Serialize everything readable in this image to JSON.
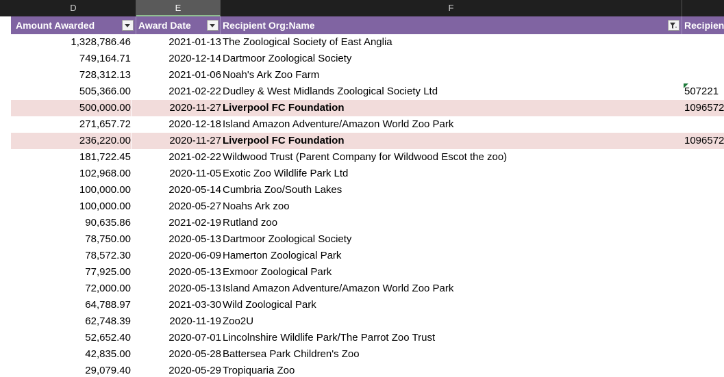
{
  "column_letters": [
    "D",
    "E",
    "F"
  ],
  "selected_column": "E",
  "headers": {
    "amount": "Amount Awarded",
    "date": "Award Date",
    "name": "Recipient Org:Name",
    "extra": "Recipient"
  },
  "rows": [
    {
      "amount": "1,328,786.46",
      "date": "2021-01-13",
      "name": "The Zoological Society of East Anglia",
      "extra": ""
    },
    {
      "amount": "749,164.71",
      "date": "2020-12-14",
      "name": "Dartmoor Zoological Society",
      "extra": ""
    },
    {
      "amount": "728,312.13",
      "date": "2021-01-06",
      "name": "Noah's Ark Zoo Farm",
      "extra": ""
    },
    {
      "amount": "505,366.00",
      "date": "2021-02-22",
      "name": "Dudley & West Midlands Zoological Society Ltd",
      "extra": "507221"
    },
    {
      "amount": "500,000.00",
      "date": "2020-11-27",
      "name": "Liverpool FC  Foundation",
      "extra": "1096572",
      "highlight": true
    },
    {
      "amount": "271,657.72",
      "date": "2020-12-18",
      "name": "Island Amazon Adventure/Amazon World Zoo Park",
      "extra": ""
    },
    {
      "amount": "236,220.00",
      "date": "2020-11-27",
      "name": "Liverpool FC  Foundation",
      "extra": "1096572",
      "highlight": true
    },
    {
      "amount": "181,722.45",
      "date": "2021-02-22",
      "name": "Wildwood Trust (Parent Company for Wildwood Escot the zoo)",
      "extra": ""
    },
    {
      "amount": "102,968.00",
      "date": "2020-11-05",
      "name": "Exotic Zoo Wildlife Park Ltd",
      "extra": ""
    },
    {
      "amount": "100,000.00",
      "date": "2020-05-14",
      "name": "Cumbria Zoo/South Lakes",
      "extra": ""
    },
    {
      "amount": "100,000.00",
      "date": "2020-05-27",
      "name": "Noahs Ark zoo",
      "extra": ""
    },
    {
      "amount": "90,635.86",
      "date": "2021-02-19",
      "name": "Rutland zoo",
      "extra": ""
    },
    {
      "amount": "78,750.00",
      "date": "2020-05-13",
      "name": "Dartmoor Zoological Society",
      "extra": ""
    },
    {
      "amount": "78,572.30",
      "date": "2020-06-09",
      "name": "Hamerton Zoological Park",
      "extra": ""
    },
    {
      "amount": "77,925.00",
      "date": "2020-05-13",
      "name": "Exmoor Zoological Park",
      "extra": ""
    },
    {
      "amount": "72,000.00",
      "date": "2020-05-13",
      "name": "Island Amazon Adventure/Amazon World Zoo Park",
      "extra": ""
    },
    {
      "amount": "64,788.97",
      "date": "2021-03-30",
      "name": "Wild Zoological Park",
      "extra": ""
    },
    {
      "amount": "62,748.39",
      "date": "2020-11-19",
      "name": "Zoo2U",
      "extra": ""
    },
    {
      "amount": "52,652.40",
      "date": "2020-07-01",
      "name": "Lincolnshire Wildlife Park/The Parrot Zoo Trust",
      "extra": ""
    },
    {
      "amount": "42,835.00",
      "date": "2020-05-28",
      "name": "Battersea Park Children's Zoo",
      "extra": ""
    },
    {
      "amount": "29,079.40",
      "date": "2020-05-29",
      "name": "Tropiquaria Zoo",
      "extra": ""
    }
  ],
  "colors": {
    "header_bg": "#8064a2",
    "highlight_row": "#f2dcdb",
    "column_header_bg": "#1f1f1f"
  }
}
